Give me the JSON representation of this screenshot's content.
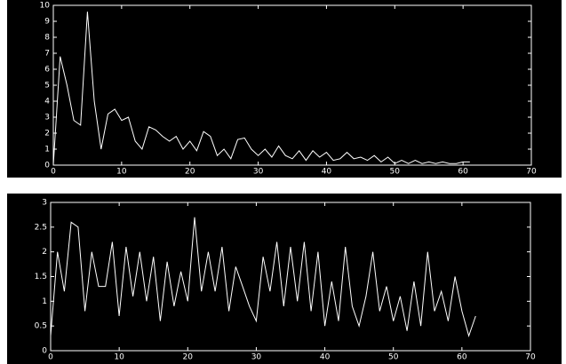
{
  "chart_data": [
    {
      "type": "line",
      "color": "#ffffff",
      "x": [
        0,
        1,
        2,
        3,
        4,
        5,
        6,
        7,
        8,
        9,
        10,
        11,
        12,
        13,
        14,
        15,
        16,
        17,
        18,
        19,
        20,
        21,
        22,
        23,
        24,
        25,
        26,
        27,
        28,
        29,
        30,
        31,
        32,
        33,
        34,
        35,
        36,
        37,
        38,
        39,
        40,
        41,
        42,
        43,
        44,
        45,
        46,
        47,
        48,
        49,
        50,
        51,
        52,
        53,
        54,
        55,
        56,
        57,
        58,
        59,
        60,
        61
      ],
      "values": [
        0,
        6.8,
        5,
        2.8,
        2.5,
        9.6,
        4,
        1.0,
        3.2,
        3.5,
        2.8,
        3.0,
        1.5,
        1.0,
        2.4,
        2.2,
        1.8,
        1.5,
        1.8,
        1.0,
        1.5,
        0.9,
        2.1,
        1.8,
        0.6,
        1.0,
        0.4,
        1.6,
        1.7,
        1.0,
        0.6,
        1.0,
        0.5,
        1.2,
        0.6,
        0.4,
        0.9,
        0.3,
        0.9,
        0.5,
        0.8,
        0.3,
        0.4,
        0.8,
        0.4,
        0.5,
        0.3,
        0.6,
        0.2,
        0.5,
        0.1,
        0.3,
        0.1,
        0.3,
        0.1,
        0.2,
        0.1,
        0.2,
        0.1,
        0.1,
        0.2,
        0.2
      ],
      "xlim": [
        0,
        70
      ],
      "xticks": [
        0,
        10,
        20,
        30,
        40,
        50,
        60,
        70
      ],
      "ylim": [
        0,
        10
      ],
      "yticks": [
        0,
        1,
        2,
        3,
        4,
        5,
        6,
        7,
        8,
        9,
        10
      ]
    },
    {
      "type": "line",
      "color": "#ffffff",
      "x": [
        0,
        1,
        2,
        3,
        4,
        5,
        6,
        7,
        8,
        9,
        10,
        11,
        12,
        13,
        14,
        15,
        16,
        17,
        18,
        19,
        20,
        21,
        22,
        23,
        24,
        25,
        26,
        27,
        28,
        29,
        30,
        31,
        32,
        33,
        34,
        35,
        36,
        37,
        38,
        39,
        40,
        41,
        42,
        43,
        44,
        45,
        46,
        47,
        48,
        49,
        50,
        51,
        52,
        53,
        54,
        55,
        56,
        57,
        58,
        59,
        60,
        61,
        62
      ],
      "values": [
        0.3,
        2.0,
        1.2,
        2.6,
        2.5,
        0.8,
        2.0,
        1.3,
        1.3,
        2.2,
        0.7,
        2.1,
        1.1,
        2.0,
        1.0,
        1.9,
        0.6,
        1.8,
        0.9,
        1.6,
        1.0,
        2.7,
        1.2,
        2.0,
        1.2,
        2.1,
        0.8,
        1.7,
        1.3,
        0.9,
        0.6,
        1.9,
        1.2,
        2.2,
        0.9,
        2.1,
        1.0,
        2.2,
        0.8,
        2.0,
        0.5,
        1.4,
        0.6,
        2.1,
        0.9,
        0.5,
        1.1,
        2.0,
        0.8,
        1.3,
        0.6,
        1.1,
        0.4,
        1.4,
        0.5,
        2.0,
        0.8,
        1.2,
        0.6,
        1.5,
        0.8,
        0.3,
        0.7
      ],
      "xlim": [
        0,
        70
      ],
      "xticks": [
        0,
        10,
        20,
        30,
        40,
        50,
        60,
        70
      ],
      "ylim": [
        0,
        3
      ],
      "yticks": [
        0,
        0.5,
        1,
        1.5,
        2,
        2.5,
        3
      ]
    }
  ]
}
